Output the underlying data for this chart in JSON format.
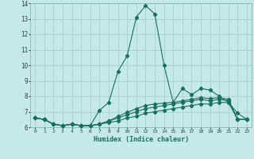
{
  "title": "",
  "xlabel": "Humidex (Indice chaleur)",
  "ylabel": "",
  "background_color": "#c5e8e8",
  "grid_color": "#a8d0d0",
  "line_color": "#1a7060",
  "xlim": [
    -0.5,
    23.5
  ],
  "ylim": [
    6,
    14
  ],
  "yticks": [
    6,
    7,
    8,
    9,
    10,
    11,
    12,
    13,
    14
  ],
  "xticks": [
    0,
    1,
    2,
    3,
    4,
    5,
    6,
    7,
    8,
    9,
    10,
    11,
    12,
    13,
    14,
    15,
    16,
    17,
    18,
    19,
    20,
    21,
    22,
    23
  ],
  "series": [
    [
      6.6,
      6.5,
      6.2,
      6.1,
      6.2,
      6.1,
      6.1,
      7.1,
      7.6,
      9.6,
      10.6,
      13.1,
      13.85,
      13.3,
      10.0,
      7.6,
      8.5,
      8.1,
      8.5,
      8.4,
      8.0,
      7.6,
      6.9,
      6.5
    ],
    [
      6.6,
      6.5,
      6.2,
      6.1,
      6.2,
      6.1,
      6.1,
      6.2,
      6.3,
      6.4,
      6.6,
      6.7,
      6.9,
      7.0,
      7.1,
      7.2,
      7.3,
      7.4,
      7.5,
      7.5,
      7.6,
      7.6,
      6.5,
      6.5
    ],
    [
      6.6,
      6.5,
      6.2,
      6.1,
      6.2,
      6.1,
      6.1,
      6.2,
      6.4,
      6.6,
      6.8,
      7.0,
      7.2,
      7.3,
      7.4,
      7.5,
      7.6,
      7.7,
      7.8,
      7.7,
      7.8,
      7.7,
      6.5,
      6.5
    ],
    [
      6.6,
      6.5,
      6.2,
      6.1,
      6.2,
      6.1,
      6.1,
      6.2,
      6.4,
      6.7,
      6.95,
      7.2,
      7.4,
      7.5,
      7.55,
      7.6,
      7.7,
      7.8,
      7.9,
      7.85,
      7.9,
      7.8,
      6.5,
      6.5
    ]
  ]
}
